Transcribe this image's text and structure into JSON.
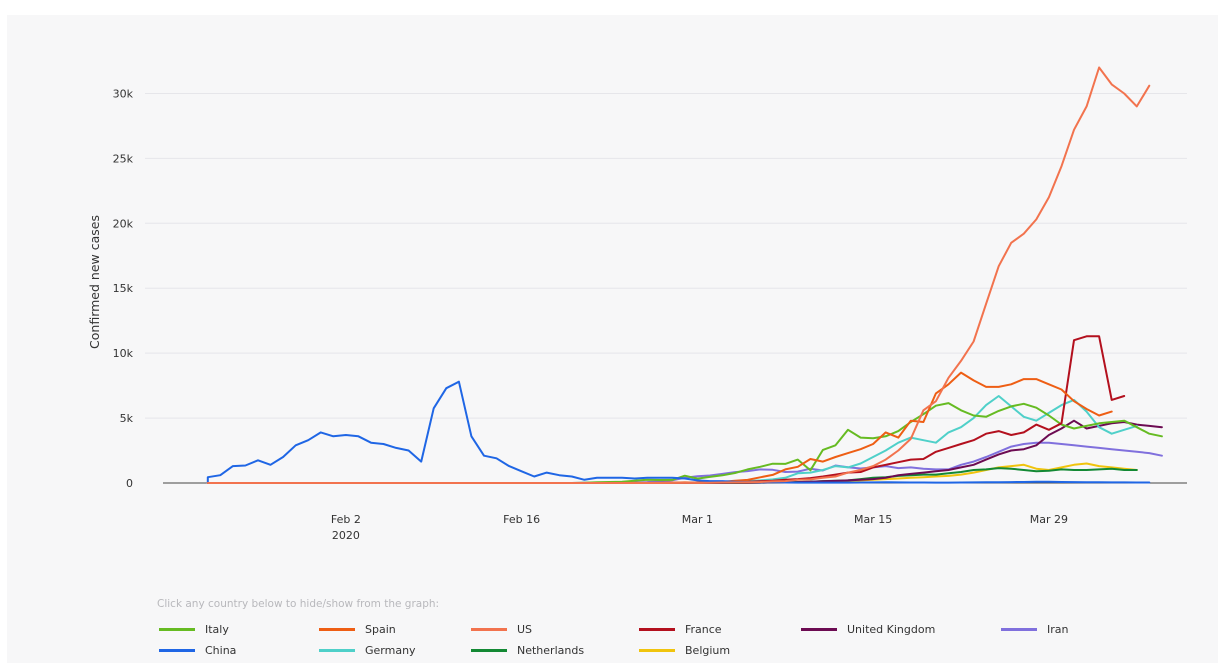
{
  "legend_hint": "Click any country below to hide/show from the graph:",
  "chart_data": {
    "type": "line",
    "title": "",
    "xlabel": "",
    "ylabel": "Confirmed new cases",
    "x_start": "2020-01-22",
    "x_ticks": [
      {
        "label": "Feb 2",
        "sublabel": "2020",
        "date": "2020-02-02"
      },
      {
        "label": "Feb 16",
        "sublabel": "",
        "date": "2020-02-16"
      },
      {
        "label": "Mar 1",
        "sublabel": "",
        "date": "2020-03-01"
      },
      {
        "label": "Mar 15",
        "sublabel": "",
        "date": "2020-03-15"
      },
      {
        "label": "Mar 29",
        "sublabel": "",
        "date": "2020-03-29"
      }
    ],
    "xlim": [
      "2020-01-17",
      "2020-04-09"
    ],
    "y_ticks": [
      {
        "label": "0",
        "value": 0
      },
      {
        "label": "5k",
        "value": 5000
      },
      {
        "label": "10k",
        "value": 10000
      },
      {
        "label": "15k",
        "value": 15000
      },
      {
        "label": "20k",
        "value": 20000
      },
      {
        "label": "25k",
        "value": 25000
      },
      {
        "label": "30k",
        "value": 30000
      }
    ],
    "ylim": [
      0,
      32500
    ],
    "grid": true,
    "legend_position": "bottom",
    "series": [
      {
        "name": "Italy",
        "color": "#66bb22",
        "start": "2020-02-21",
        "values": [
          20,
          60,
          80,
          100,
          180,
          250,
          230,
          240,
          560,
          340,
          470,
          590,
          770,
          1050,
          1250,
          1490,
          1470,
          1800,
          980,
          2550,
          2900,
          4100,
          3500,
          3450,
          3600,
          4000,
          4700,
          5300,
          5950,
          6150,
          5600,
          5200,
          5100,
          5550,
          5900,
          6100,
          5800,
          5200,
          4500,
          4200,
          4400,
          4600,
          4700,
          4800,
          4300,
          3800,
          3600
        ]
      },
      {
        "name": "Spain",
        "color": "#ee5e14",
        "start": "2020-02-24",
        "values": [
          0,
          6,
          6,
          4,
          25,
          50,
          25,
          40,
          100,
          170,
          240,
          440,
          620,
          1050,
          1250,
          1850,
          1650,
          2000,
          2300,
          2600,
          3000,
          3900,
          3500,
          4800,
          4700,
          6900,
          7600,
          8500,
          7900,
          7400,
          7400,
          7600,
          8000,
          8000,
          7600,
          7200,
          6300,
          5700,
          5200,
          5500
        ]
      },
      {
        "name": "US",
        "color": "#f2734e",
        "start": "2020-02-28",
        "values": [
          8,
          4,
          11,
          20,
          35,
          50,
          55,
          80,
          120,
          150,
          250,
          280,
          400,
          500,
          800,
          1000,
          1300,
          1800,
          2500,
          3400,
          5600,
          6300,
          8100,
          9400,
          10900,
          13800,
          16700,
          18500,
          19200,
          20300,
          22000,
          24400,
          27200,
          29000,
          32000,
          30700,
          30000,
          29000,
          30600
        ]
      },
      {
        "name": "France",
        "color": "#b3101e",
        "start": "2020-02-25",
        "values": [
          1,
          2,
          4,
          12,
          18,
          30,
          40,
          60,
          80,
          90,
          140,
          170,
          250,
          300,
          380,
          500,
          650,
          800,
          850,
          1200,
          1400,
          1600,
          1800,
          1850,
          2400,
          2700,
          3000,
          3300,
          3800,
          4000,
          3700,
          3900,
          4500,
          4100,
          4600,
          11000,
          11300,
          11300,
          6400,
          6700
        ]
      },
      {
        "name": "United Kingdom",
        "color": "#6c0b52",
        "start": "2020-02-28",
        "values": [
          4,
          3,
          12,
          5,
          10,
          15,
          20,
          30,
          50,
          60,
          70,
          100,
          130,
          160,
          200,
          250,
          300,
          400,
          600,
          700,
          800,
          900,
          1000,
          1200,
          1400,
          1800,
          2200,
          2500,
          2600,
          2900,
          3700,
          4200,
          4800,
          4200,
          4400,
          4600,
          4700,
          4500,
          4400,
          4300
        ]
      },
      {
        "name": "Iran",
        "color": "#8070dd",
        "start": "2020-02-19",
        "values": [
          2,
          3,
          13,
          15,
          20,
          30,
          40,
          70,
          140,
          210,
          400,
          520,
          580,
          700,
          840,
          920,
          1050,
          1020,
          850,
          880,
          1100,
          960,
          1350,
          1220,
          1120,
          1200,
          1300,
          1150,
          1200,
          1100,
          1050,
          1050,
          1400,
          1650,
          2000,
          2400,
          2800,
          3000,
          3100,
          3100,
          3000,
          2900,
          2800,
          2700,
          2600,
          2500,
          2400,
          2300,
          2100
        ]
      },
      {
        "name": "China",
        "color": "#1f66e5",
        "start": "2020-01-22",
        "values": [
          450,
          600,
          1300,
          1350,
          1750,
          1400,
          2000,
          2900,
          3300,
          3900,
          3600,
          3700,
          3600,
          3100,
          3000,
          2700,
          2500,
          1650,
          5750,
          7300,
          7800,
          3600,
          2100,
          1900,
          1300,
          900,
          500,
          800,
          600,
          500,
          250,
          400,
          400,
          400,
          350,
          400,
          400,
          400,
          350,
          200,
          150,
          150,
          100,
          80,
          50,
          60,
          40,
          30,
          30,
          30,
          30,
          30,
          40,
          50,
          60,
          50,
          40,
          40,
          30,
          30,
          40,
          50,
          60,
          60,
          70,
          80,
          90,
          90,
          80,
          70,
          60,
          60,
          50,
          50,
          40,
          40
        ]
      },
      {
        "name": "Germany",
        "color": "#4fd0c9",
        "start": "2020-02-26",
        "values": [
          1,
          5,
          10,
          12,
          30,
          40,
          60,
          80,
          150,
          200,
          280,
          400,
          750,
          800,
          1000,
          1300,
          1200,
          1500,
          2000,
          2500,
          3100,
          3500,
          3300,
          3100,
          3900,
          4300,
          5000,
          6000,
          6700,
          5900,
          5100,
          4800,
          5400,
          6000,
          6400,
          5500,
          4300,
          3800,
          4100,
          4400
        ]
      },
      {
        "name": "Netherlands",
        "color": "#138934",
        "start": "2020-02-27",
        "values": [
          1,
          1,
          2,
          5,
          5,
          10,
          10,
          15,
          30,
          50,
          60,
          80,
          100,
          150,
          170,
          200,
          300,
          400,
          450,
          550,
          600,
          650,
          650,
          750,
          850,
          1000,
          1050,
          1150,
          1100,
          1000,
          900,
          950,
          1050,
          1000,
          1000,
          1050,
          1100,
          1000,
          1000
        ]
      },
      {
        "name": "Belgium",
        "color": "#f0c40d",
        "start": "2020-02-29",
        "values": [
          1,
          2,
          3,
          5,
          10,
          20,
          30,
          30,
          40,
          50,
          60,
          80,
          100,
          150,
          200,
          250,
          300,
          350,
          400,
          450,
          500,
          550,
          650,
          800,
          1000,
          1200,
          1300,
          1400,
          1100,
          1000,
          1200,
          1400,
          1500,
          1300,
          1200,
          1100,
          1000
        ]
      }
    ]
  }
}
